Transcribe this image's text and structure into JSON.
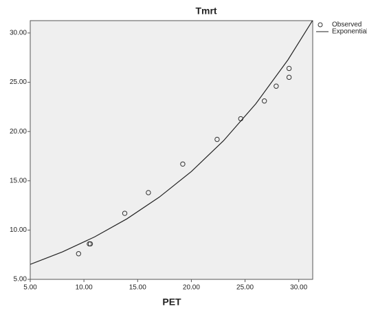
{
  "chart_data": {
    "type": "scatter",
    "title": "Tmrt",
    "x_label": "PET",
    "xlim": [
      5,
      31.3
    ],
    "ylim": [
      5,
      31.25
    ],
    "xticks": [
      {
        "value": 5,
        "label": "5.00"
      },
      {
        "value": 10,
        "label": "10.00"
      },
      {
        "value": 15,
        "label": "15.00"
      },
      {
        "value": 20,
        "label": "20.00"
      },
      {
        "value": 25,
        "label": "25.00"
      },
      {
        "value": 30,
        "label": "30.00"
      }
    ],
    "yticks": [
      {
        "value": 5,
        "label": "5.00"
      },
      {
        "value": 10,
        "label": "10.00"
      },
      {
        "value": 15,
        "label": "15.00"
      },
      {
        "value": 20,
        "label": "20.00"
      },
      {
        "value": 25,
        "label": "25.00"
      },
      {
        "value": 30,
        "label": "30.00"
      }
    ],
    "series": [
      {
        "name": "Observed",
        "type": "scatter",
        "color": "#333333",
        "x": [
          9.5,
          10.5,
          10.6,
          13.8,
          16.0,
          19.2,
          22.4,
          24.6,
          26.8,
          27.9,
          29.1,
          29.1
        ],
        "values": [
          7.6,
          8.6,
          8.6,
          11.7,
          13.8,
          16.7,
          19.2,
          21.3,
          23.1,
          24.6,
          25.5,
          26.4
        ]
      },
      {
        "name": "Exponential",
        "type": "line",
        "color": "#222222",
        "x": [
          5,
          8,
          11,
          14,
          17,
          20,
          23,
          26,
          29,
          31.3
        ],
        "values": [
          6.52,
          7.79,
          9.31,
          11.14,
          13.33,
          15.94,
          19.07,
          22.81,
          27.28,
          31.29
        ]
      }
    ]
  }
}
